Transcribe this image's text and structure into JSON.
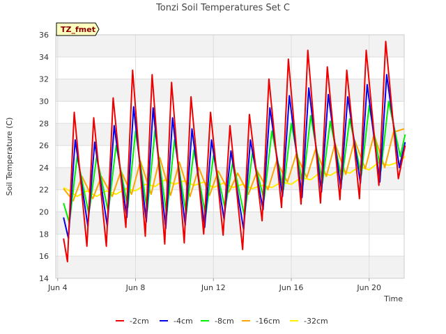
{
  "chart_data": {
    "type": "line",
    "title": "Tonzi Soil Temperatures Set C",
    "xlabel": "Time",
    "ylabel": "Soil Temperature (C)",
    "badge": "TZ_fmet",
    "xlim": [
      3.9,
      21.8
    ],
    "ylim": [
      14,
      36
    ],
    "x_ticks": [
      {
        "value": 4,
        "label": "Jun 4"
      },
      {
        "value": 8,
        "label": "Jun 8"
      },
      {
        "value": 12,
        "label": "Jun 12"
      },
      {
        "value": 16,
        "label": "Jun 16"
      },
      {
        "value": 20,
        "label": "Jun 20"
      }
    ],
    "y_ticks": [
      14,
      16,
      18,
      20,
      22,
      24,
      26,
      28,
      30,
      32,
      34,
      36
    ],
    "grid": true,
    "legend": "bottom",
    "x_units": "day of June (fractional)",
    "series": [
      {
        "name": "-2cm",
        "color": "#ee0000",
        "x": [
          4.3,
          4.5,
          4.85,
          5.5,
          5.85,
          6.5,
          6.85,
          7.5,
          7.85,
          8.5,
          8.85,
          9.5,
          9.85,
          10.5,
          10.85,
          11.5,
          11.85,
          12.5,
          12.85,
          13.5,
          13.85,
          14.5,
          14.85,
          15.5,
          15.85,
          16.5,
          16.85,
          17.5,
          17.85,
          18.5,
          18.85,
          19.5,
          19.85,
          20.5,
          20.85,
          21.5,
          21.85
        ],
        "y": [
          17.6,
          15.5,
          29.0,
          16.9,
          28.5,
          16.9,
          30.3,
          18.6,
          32.8,
          17.8,
          32.4,
          17.1,
          31.7,
          17.2,
          30.4,
          18.0,
          29.0,
          17.9,
          27.8,
          16.6,
          28.8,
          19.2,
          32.0,
          20.4,
          33.8,
          20.7,
          34.6,
          20.8,
          33.1,
          21.1,
          32.8,
          21.2,
          34.6,
          22.4,
          35.4,
          23.0,
          26.0
        ]
      },
      {
        "name": "-4cm",
        "color": "#0000ee",
        "x": [
          4.3,
          4.55,
          4.9,
          5.55,
          5.9,
          6.55,
          6.9,
          7.55,
          7.9,
          8.55,
          8.9,
          9.55,
          9.9,
          10.55,
          10.9,
          11.55,
          11.9,
          12.55,
          12.9,
          13.55,
          13.9,
          14.55,
          14.9,
          15.55,
          15.9,
          16.55,
          16.9,
          17.55,
          17.9,
          18.55,
          18.9,
          19.55,
          19.9,
          20.55,
          20.9,
          21.55,
          21.85
        ],
        "y": [
          19.5,
          17.6,
          26.5,
          18.7,
          26.3,
          18.7,
          27.8,
          19.5,
          29.5,
          19.1,
          29.4,
          18.5,
          28.5,
          18.8,
          27.5,
          18.6,
          26.5,
          19.3,
          25.5,
          18.4,
          26.5,
          20.2,
          29.4,
          21.4,
          30.5,
          21.3,
          31.2,
          21.8,
          30.6,
          22.1,
          30.4,
          22.6,
          31.5,
          22.7,
          32.4,
          24.0,
          26.3
        ]
      },
      {
        "name": "-8cm",
        "color": "#00ee00",
        "x": [
          4.3,
          4.6,
          5.0,
          5.6,
          6.0,
          6.6,
          7.0,
          7.6,
          8.0,
          8.6,
          9.0,
          9.6,
          10.0,
          10.6,
          11.0,
          11.6,
          12.0,
          12.6,
          13.0,
          13.6,
          14.0,
          14.6,
          15.0,
          15.6,
          16.0,
          16.6,
          17.0,
          17.6,
          18.0,
          18.6,
          19.0,
          19.6,
          20.0,
          20.6,
          21.0,
          21.6,
          21.85
        ],
        "y": [
          20.8,
          19.0,
          25.0,
          19.8,
          25.0,
          20.0,
          26.0,
          20.4,
          27.3,
          20.1,
          27.4,
          19.7,
          26.5,
          19.8,
          25.6,
          19.6,
          25.1,
          20.3,
          24.6,
          19.6,
          25.3,
          21.1,
          27.3,
          22.0,
          28.0,
          22.4,
          28.7,
          22.6,
          28.2,
          22.9,
          28.4,
          23.3,
          29.6,
          23.7,
          30.0,
          25.0,
          27.0
        ]
      },
      {
        "name": "-16cm",
        "color": "#ffa500",
        "x": [
          4.3,
          4.8,
          5.25,
          5.8,
          6.25,
          6.8,
          7.25,
          7.8,
          8.25,
          8.8,
          9.25,
          9.8,
          10.25,
          10.8,
          11.25,
          11.8,
          12.25,
          12.8,
          13.25,
          13.8,
          14.25,
          14.8,
          15.25,
          15.8,
          16.25,
          16.8,
          17.25,
          17.8,
          18.25,
          18.8,
          19.25,
          19.8,
          20.25,
          20.8,
          21.25,
          21.8
        ],
        "y": [
          22.1,
          21.0,
          23.2,
          21.2,
          23.2,
          21.4,
          23.7,
          21.6,
          24.6,
          21.6,
          24.9,
          21.5,
          24.5,
          21.4,
          24.0,
          21.5,
          23.7,
          21.8,
          23.5,
          21.6,
          23.7,
          22.0,
          24.6,
          22.7,
          25.2,
          23.1,
          25.7,
          23.2,
          26.2,
          23.4,
          26.5,
          23.9,
          27.0,
          24.0,
          27.2,
          27.5
        ]
      },
      {
        "name": "-32cm",
        "color": "#ffee00",
        "x": [
          4.3,
          4.6,
          5.0,
          5.5,
          6.0,
          6.5,
          7.0,
          7.5,
          8.0,
          8.5,
          9.0,
          9.5,
          10.0,
          10.5,
          11.0,
          11.5,
          12.0,
          12.5,
          13.0,
          13.5,
          14.0,
          14.5,
          15.0,
          15.5,
          16.0,
          16.5,
          17.0,
          17.5,
          18.0,
          18.5,
          19.0,
          19.5,
          20.0,
          20.5,
          21.0,
          21.5,
          21.85
        ],
        "y": [
          22.2,
          21.9,
          21.4,
          21.9,
          21.4,
          21.9,
          21.6,
          22.1,
          21.9,
          22.5,
          22.3,
          22.9,
          22.5,
          22.8,
          22.4,
          22.7,
          22.2,
          22.6,
          22.2,
          22.5,
          22.1,
          22.4,
          22.2,
          22.7,
          22.5,
          23.1,
          22.9,
          23.6,
          23.3,
          23.8,
          23.5,
          24.1,
          23.8,
          24.5,
          24.2,
          24.5,
          25.0
        ]
      }
    ]
  }
}
